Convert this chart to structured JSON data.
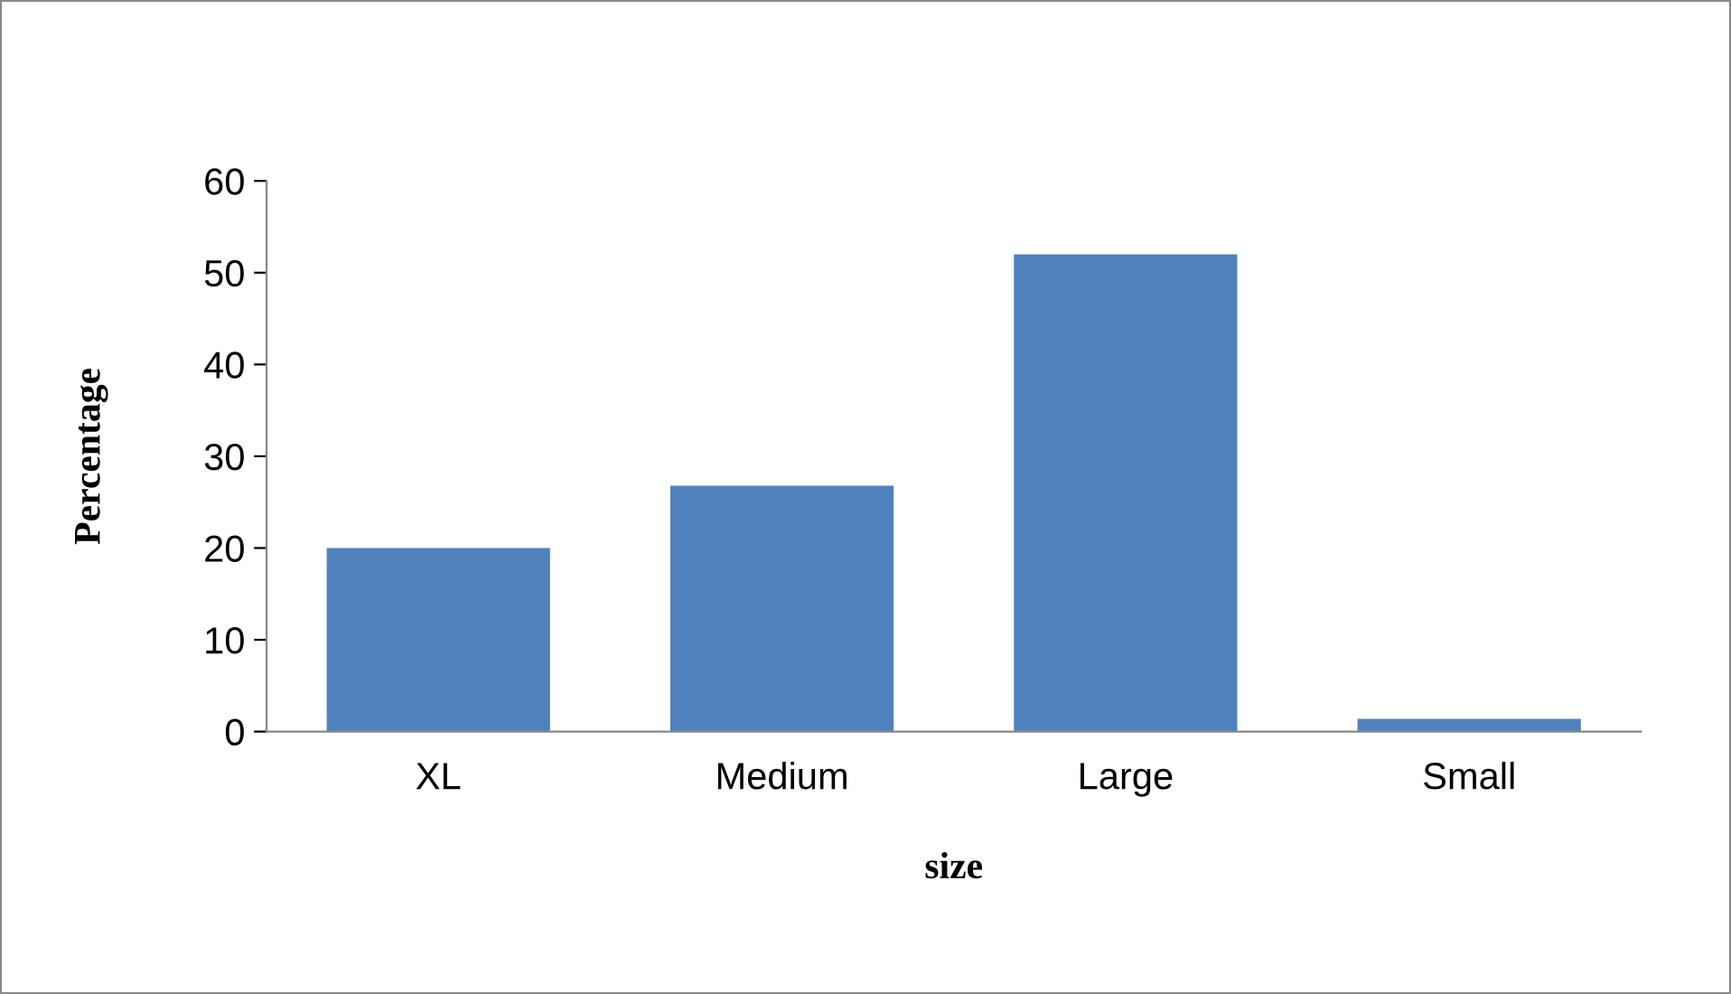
{
  "chart_data": {
    "type": "bar",
    "xlabel": "size",
    "ylabel": "Percentage",
    "categories": [
      "XL",
      "Medium",
      "Large",
      "Small"
    ],
    "values": [
      20,
      26.8,
      52,
      1.4
    ],
    "color": "#4f81bd",
    "ylim": [
      0,
      60
    ],
    "yticks": [
      0,
      10,
      20,
      30,
      40,
      50,
      60
    ],
    "grid": false,
    "legend": false
  }
}
